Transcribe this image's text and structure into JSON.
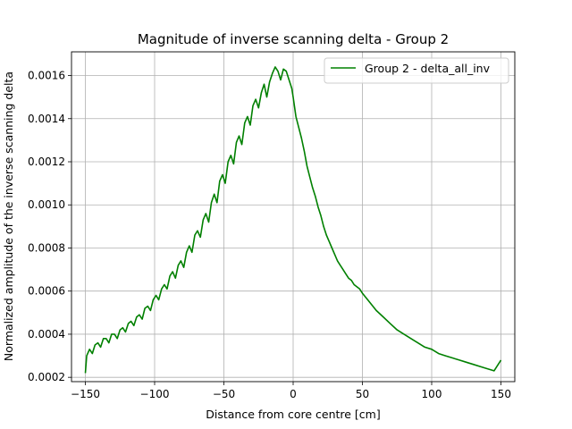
{
  "chart_data": {
    "type": "line",
    "title": "Magnitude of inverse scanning delta - Group 2",
    "xlabel": "Distance from core centre [cm]",
    "ylabel": "Normalized amplitude of the inverse scanning delta",
    "xlim": [
      -160,
      160
    ],
    "ylim": [
      0.00018,
      0.00171
    ],
    "xticks": [
      -150,
      -100,
      -50,
      0,
      50,
      100,
      150
    ],
    "xtick_labels": [
      "−150",
      "−100",
      "−50",
      "0",
      "50",
      "100",
      "150"
    ],
    "yticks": [
      0.0002,
      0.0004,
      0.0006,
      0.0008,
      0.001,
      0.0012,
      0.0014,
      0.0016
    ],
    "ytick_labels": [
      "0.0002",
      "0.0004",
      "0.0006",
      "0.0008",
      "0.0010",
      "0.0012",
      "0.0014",
      "0.0016"
    ],
    "grid": true,
    "legend_position": "top-right",
    "series": [
      {
        "name": "Group 2 - delta_all_inv",
        "color": "#008000",
        "x": [
          -150,
          -149,
          -147,
          -145,
          -143,
          -141,
          -139,
          -137,
          -135,
          -133,
          -131,
          -129,
          -127,
          -125,
          -123,
          -121,
          -119,
          -117,
          -115,
          -113,
          -111,
          -109,
          -107,
          -105,
          -103,
          -101,
          -99,
          -97,
          -95,
          -93,
          -91,
          -89,
          -87,
          -85,
          -83,
          -81,
          -79,
          -77,
          -75,
          -73,
          -71,
          -69,
          -67,
          -65,
          -63,
          -61,
          -59,
          -57,
          -55,
          -53,
          -51,
          -49,
          -47,
          -45,
          -43,
          -41,
          -39,
          -37,
          -35,
          -33,
          -31,
          -29,
          -27,
          -25,
          -23,
          -21,
          -19,
          -17,
          -15,
          -13,
          -11,
          -9,
          -7,
          -5,
          -3,
          -1,
          0,
          2,
          4,
          6,
          8,
          10,
          12,
          14,
          16,
          18,
          20,
          22,
          24,
          26,
          28,
          30,
          32,
          34,
          36,
          38,
          40,
          42,
          44,
          46,
          48,
          50,
          55,
          60,
          65,
          70,
          75,
          80,
          85,
          90,
          95,
          100,
          105,
          110,
          115,
          120,
          125,
          130,
          135,
          140,
          145,
          150
        ],
        "y": [
          0.00022,
          0.0003,
          0.00033,
          0.00031,
          0.00035,
          0.00036,
          0.00034,
          0.00038,
          0.00038,
          0.00036,
          0.0004,
          0.0004,
          0.00038,
          0.00042,
          0.00043,
          0.00041,
          0.00045,
          0.00046,
          0.00044,
          0.00048,
          0.00049,
          0.00047,
          0.00052,
          0.00053,
          0.00051,
          0.00056,
          0.00058,
          0.00056,
          0.00061,
          0.00063,
          0.00061,
          0.00067,
          0.00069,
          0.00066,
          0.00072,
          0.00074,
          0.00071,
          0.00078,
          0.00081,
          0.00078,
          0.00086,
          0.00088,
          0.00085,
          0.00093,
          0.00096,
          0.00092,
          0.00101,
          0.00105,
          0.00101,
          0.00111,
          0.00114,
          0.0011,
          0.0012,
          0.00123,
          0.00119,
          0.00129,
          0.00132,
          0.00128,
          0.00138,
          0.00141,
          0.00137,
          0.00146,
          0.00149,
          0.00145,
          0.00152,
          0.00156,
          0.0015,
          0.00157,
          0.00161,
          0.00164,
          0.00162,
          0.00158,
          0.00163,
          0.00162,
          0.00158,
          0.00154,
          0.0015,
          0.00141,
          0.00136,
          0.00131,
          0.00125,
          0.00118,
          0.00113,
          0.00108,
          0.00104,
          0.00099,
          0.00095,
          0.0009,
          0.00086,
          0.00083,
          0.0008,
          0.00077,
          0.00074,
          0.00072,
          0.0007,
          0.00068,
          0.00066,
          0.00065,
          0.00063,
          0.00062,
          0.00061,
          0.00059,
          0.00055,
          0.00051,
          0.00048,
          0.00045,
          0.00042,
          0.0004,
          0.00038,
          0.00036,
          0.00034,
          0.00033,
          0.00031,
          0.0003,
          0.00029,
          0.00028,
          0.00027,
          0.00026,
          0.00025,
          0.00024,
          0.00023,
          0.00028
        ]
      }
    ]
  }
}
